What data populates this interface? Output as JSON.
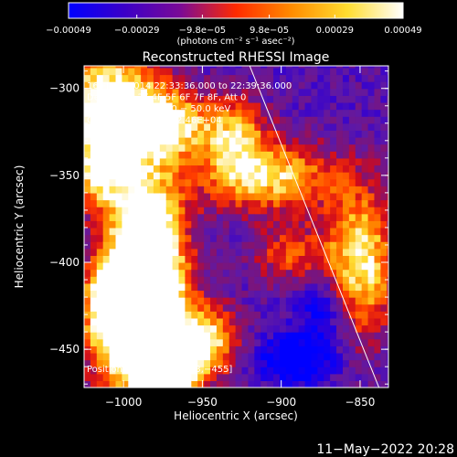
{
  "chart_data": {
    "type": "heatmap",
    "title": "Reconstructed RHESSI Image",
    "xlabel": "Heliocentric X (arcsec)",
    "ylabel": "Heliocentric Y (arcsec)",
    "xlim": [
      -1025,
      -832
    ],
    "ylim": [
      -472,
      -287
    ],
    "x_ticks": [
      -1000,
      -950,
      -900,
      -850
    ],
    "y_ticks": [
      -300,
      -350,
      -400,
      -450
    ],
    "x_tick_labels": [
      "−1000",
      "−950",
      "−900",
      "−850"
    ],
    "y_tick_labels": [
      "−300",
      "−350",
      "−400",
      "−450"
    ],
    "colorbar": {
      "range": [
        -0.00049,
        0.00049
      ],
      "ticks": [
        -0.00049,
        -0.00029,
        -9.8e-05,
        9.8e-05,
        0.00029,
        0.00049
      ],
      "tick_labels": [
        "−0.00049",
        "−0.00029",
        "−9.8e−05",
        "9.8e−05",
        "0.00029",
        "0.00049"
      ],
      "units_label": "(photons cm⁻² s⁻¹ asec⁻²)",
      "colors": [
        "#0000ff",
        "#3b00c8",
        "#7a0a96",
        "#ff2a00",
        "#ff8c00",
        "#ffdd30",
        "#ffffff"
      ]
    },
    "info_lines": [
      "16−Jan−2014 22:33:36.000 to 22:39:36.000",
      "Detectors: 3F 4F 5F 6F 7F 8F, Att 0",
      "Energy Range: 25.0 − 50.0 keV",
      "Clean      Total counts: 2.46E+04"
    ],
    "peak_label": "Position of Peak = [−973,−455]",
    "peak_position": [
      -973,
      -455
    ],
    "limb_line": {
      "from": [
        -920,
        -287
      ],
      "to": [
        -838,
        -472
      ]
    },
    "blobs": [
      {
        "x": -985,
        "y": -390,
        "sx": 16,
        "sy": 32,
        "a": 1.05
      },
      {
        "x": -990,
        "y": -440,
        "sx": 22,
        "sy": 26,
        "a": 0.95
      },
      {
        "x": -973,
        "y": -458,
        "sx": 14,
        "sy": 12,
        "a": 0.95
      },
      {
        "x": -1010,
        "y": -305,
        "sx": 22,
        "sy": 20,
        "a": 0.75
      },
      {
        "x": -975,
        "y": -320,
        "sx": 20,
        "sy": 14,
        "a": 0.7
      },
      {
        "x": -1015,
        "y": -345,
        "sx": 14,
        "sy": 18,
        "a": 0.65
      },
      {
        "x": -910,
        "y": -350,
        "sx": 30,
        "sy": 14,
        "a": 0.65
      },
      {
        "x": -930,
        "y": -325,
        "sx": 14,
        "sy": 14,
        "a": 0.5
      },
      {
        "x": -850,
        "y": -400,
        "sx": 16,
        "sy": 30,
        "a": 0.7
      },
      {
        "x": -945,
        "y": -445,
        "sx": 14,
        "sy": 14,
        "a": 0.55
      },
      {
        "x": -895,
        "y": -395,
        "sx": 16,
        "sy": 12,
        "a": 0.35
      },
      {
        "x": -1010,
        "y": -420,
        "sx": 10,
        "sy": 16,
        "a": 0.55
      },
      {
        "x": -890,
        "y": -455,
        "sx": 18,
        "sy": 10,
        "a": -0.45
      },
      {
        "x": -872,
        "y": -425,
        "sx": 12,
        "sy": 14,
        "a": -0.35
      }
    ],
    "footer_date": "11−May−2022 20:28"
  }
}
